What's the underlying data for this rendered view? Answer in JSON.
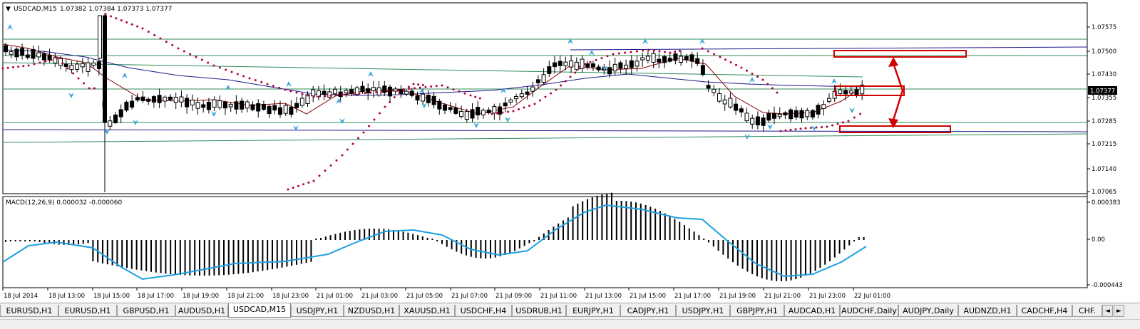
{
  "window": {
    "symbol_label": "USDCAD,M15",
    "ohlc_label": "1.07382 1.07384 1.07373 1.07377",
    "menu_glyph": "▼"
  },
  "price_axis": {
    "ticks": [
      "1.07575",
      "1.07500",
      "1.07430",
      "1.07355",
      "1.07285",
      "1.07215",
      "1.07140",
      "1.07065"
    ],
    "current_price": "1.07377"
  },
  "macd": {
    "label": "MACD(12,26,9) 0.000032 -0.000060",
    "ticks": [
      "0.000383",
      "0.00",
      "-0.000443"
    ]
  },
  "time_axis": {
    "labels": [
      "18 Jul 2014",
      "18 Jul 13:00",
      "18 Jul 15:00",
      "18 Jul 17:00",
      "18 Jul 19:00",
      "18 Jul 21:00",
      "18 Jul 23:00",
      "21 Jul 01:00",
      "21 Jul 03:00",
      "21 Jul 05:00",
      "21 Jul 07:00",
      "21 Jul 09:00",
      "21 Jul 11:00",
      "21 Jul 13:00",
      "21 Jul 15:00",
      "21 Jul 17:00",
      "21 Jul 19:00",
      "21 Jul 21:00",
      "21 Jul 23:00",
      "22 Jul 01:00"
    ]
  },
  "tabs": [
    {
      "label": "EURUSD,H1",
      "active": false
    },
    {
      "label": "EURUSD,H1",
      "active": false
    },
    {
      "label": "GBPUSD,H1",
      "active": false
    },
    {
      "label": "AUDUSD,H1",
      "active": false
    },
    {
      "label": "USDCAD,M15",
      "active": true
    },
    {
      "label": "USDJPY,H1",
      "active": false
    },
    {
      "label": "NZDUSD,H1",
      "active": false
    },
    {
      "label": "XAUUSD,H1",
      "active": false
    },
    {
      "label": "USDCHF,H4",
      "active": false
    },
    {
      "label": "USDRUB,H1",
      "active": false
    },
    {
      "label": "EURJPY,H1",
      "active": false
    },
    {
      "label": "CADJPY,H1",
      "active": false
    },
    {
      "label": "USDJPY,H1",
      "active": false
    },
    {
      "label": "GBPJPY,H1",
      "active": false
    },
    {
      "label": "AUDCAD,H1",
      "active": false
    },
    {
      "label": "AUDCHF,Daily",
      "active": false
    },
    {
      "label": "AUDJPY,Daily",
      "active": false
    },
    {
      "label": "AUDNZD,H1",
      "active": false
    },
    {
      "label": "CADCHF,H4",
      "active": false
    },
    {
      "label": "CHF.",
      "active": false
    }
  ],
  "tab_scroll": {
    "left": "◄",
    "right": "►"
  },
  "colors": {
    "bull": "#ffffff",
    "bear": "#000000",
    "ma_fast": "#8b0000",
    "ma_slow": "#1a1a8c",
    "sar": "#b0003a",
    "trend_green": "#2e8b57",
    "trend_blue": "#1a1a8c",
    "signal": "#1ea0e0",
    "annotation": "#d00000",
    "fractal": "#3aa6d8"
  }
}
